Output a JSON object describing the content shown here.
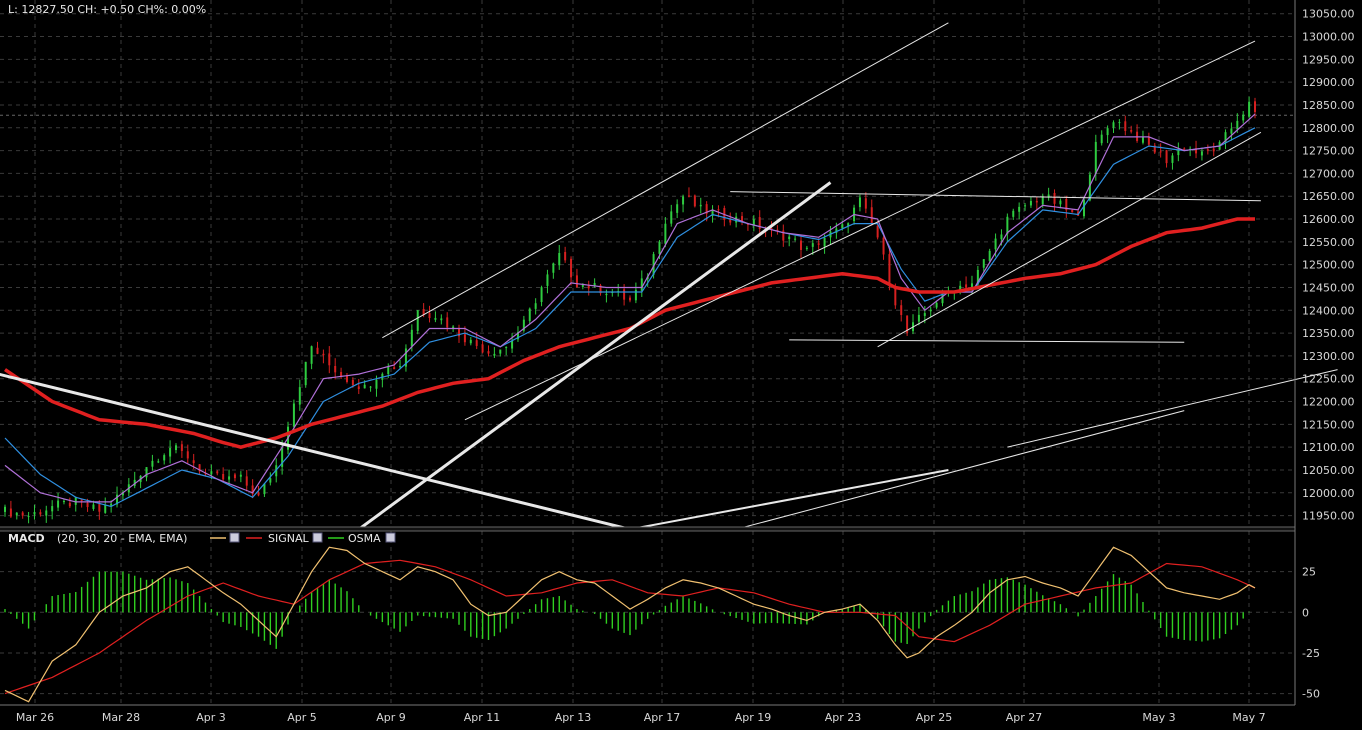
{
  "header": {
    "quote_line": "L: 12827.50 CH: +0.50   CH%: 0.00%"
  },
  "macd_legend": {
    "name": "MACD",
    "params": "(20, 30, 20 - EMA, EMA)",
    "signal": "SIGNAL",
    "osma": "OSMA"
  },
  "colors": {
    "background": "#000000",
    "grid": "#3a3a3a",
    "candle_up": "#2ecc40",
    "candle_down": "#d62020",
    "ma_long": "#e02020",
    "ma_mid": "#2f8fe0",
    "ma_short": "#b070d8",
    "trendline": "#e8e8e8",
    "macd_line": "#f0c070",
    "signal_line": "#e02020",
    "osma_bars": "#30d020"
  },
  "chart_data": [
    {
      "type": "candlestick",
      "name": "price",
      "y_tick_labels": [
        "13050.00",
        "13000.00",
        "12950.00",
        "12900.00",
        "12850.00",
        "12800.00",
        "12750.00",
        "12700.00",
        "12650.00",
        "12600.00",
        "12550.00",
        "12500.00",
        "12450.00",
        "12400.00",
        "12350.00",
        "12300.00",
        "12250.00",
        "12200.00",
        "12150.00",
        "12100.00",
        "12050.00",
        "12000.00",
        "11950.00"
      ],
      "ylim": [
        11925,
        13080
      ],
      "x_tick_labels": [
        "Mar 26",
        "Mar 28",
        "Apr 3",
        "Apr 5",
        "Apr 9",
        "Apr 11",
        "Apr 13",
        "Apr 17",
        "Apr 19",
        "Apr 23",
        "Apr 25",
        "Apr 27",
        "May 3",
        "May 7"
      ],
      "last_value": 12827.5,
      "close_path": [
        [
          0,
          11960
        ],
        [
          4,
          11950
        ],
        [
          8,
          11970
        ],
        [
          12,
          11980
        ],
        [
          16,
          11960
        ],
        [
          20,
          12000
        ],
        [
          24,
          12060
        ],
        [
          28,
          12100
        ],
        [
          31,
          12080
        ],
        [
          34,
          12040
        ],
        [
          37,
          12030
        ],
        [
          40,
          12030
        ],
        [
          43,
          11990
        ],
        [
          46,
          12060
        ],
        [
          49,
          12200
        ],
        [
          52,
          12320
        ],
        [
          55,
          12280
        ],
        [
          58,
          12250
        ],
        [
          61,
          12230
        ],
        [
          64,
          12270
        ],
        [
          67,
          12280
        ],
        [
          70,
          12400
        ],
        [
          73,
          12390
        ],
        [
          76,
          12360
        ],
        [
          79,
          12330
        ],
        [
          82,
          12310
        ],
        [
          85,
          12320
        ],
        [
          88,
          12370
        ],
        [
          91,
          12450
        ],
        [
          94,
          12520
        ],
        [
          97,
          12460
        ],
        [
          100,
          12450
        ],
        [
          103,
          12440
        ],
        [
          106,
          12420
        ],
        [
          109,
          12480
        ],
        [
          112,
          12600
        ],
        [
          115,
          12650
        ],
        [
          118,
          12620
        ],
        [
          121,
          12610
        ],
        [
          124,
          12600
        ],
        [
          127,
          12590
        ],
        [
          130,
          12570
        ],
        [
          133,
          12560
        ],
        [
          136,
          12530
        ],
        [
          139,
          12560
        ],
        [
          142,
          12580
        ],
        [
          145,
          12640
        ],
        [
          148,
          12560
        ],
        [
          151,
          12420
        ],
        [
          153,
          12350
        ],
        [
          155,
          12380
        ],
        [
          158,
          12420
        ],
        [
          161,
          12450
        ],
        [
          164,
          12460
        ],
        [
          167,
          12530
        ],
        [
          170,
          12600
        ],
        [
          173,
          12630
        ],
        [
          176,
          12650
        ],
        [
          179,
          12630
        ],
        [
          182,
          12600
        ],
        [
          185,
          12760
        ],
        [
          188,
          12820
        ],
        [
          191,
          12790
        ],
        [
          194,
          12760
        ],
        [
          197,
          12730
        ],
        [
          200,
          12760
        ],
        [
          203,
          12740
        ],
        [
          206,
          12760
        ],
        [
          209,
          12820
        ],
        [
          211,
          12850
        ],
        [
          212,
          12828
        ]
      ],
      "ma_long_path": [
        [
          0,
          12270
        ],
        [
          8,
          12200
        ],
        [
          16,
          12160
        ],
        [
          24,
          12150
        ],
        [
          32,
          12130
        ],
        [
          37,
          12110
        ],
        [
          40,
          12100
        ],
        [
          46,
          12120
        ],
        [
          52,
          12150
        ],
        [
          58,
          12170
        ],
        [
          64,
          12190
        ],
        [
          70,
          12220
        ],
        [
          76,
          12240
        ],
        [
          82,
          12250
        ],
        [
          88,
          12290
        ],
        [
          94,
          12320
        ],
        [
          100,
          12340
        ],
        [
          106,
          12360
        ],
        [
          112,
          12400
        ],
        [
          118,
          12420
        ],
        [
          124,
          12440
        ],
        [
          130,
          12460
        ],
        [
          136,
          12470
        ],
        [
          142,
          12480
        ],
        [
          148,
          12470
        ],
        [
          151,
          12450
        ],
        [
          155,
          12440
        ],
        [
          161,
          12440
        ],
        [
          167,
          12455
        ],
        [
          173,
          12470
        ],
        [
          179,
          12480
        ],
        [
          185,
          12500
        ],
        [
          191,
          12540
        ],
        [
          197,
          12570
        ],
        [
          203,
          12580
        ],
        [
          209,
          12600
        ]
      ],
      "ma_mid_path": [
        [
          0,
          12120
        ],
        [
          6,
          12040
        ],
        [
          12,
          11990
        ],
        [
          18,
          11970
        ],
        [
          24,
          12010
        ],
        [
          30,
          12050
        ],
        [
          36,
          12030
        ],
        [
          42,
          11990
        ],
        [
          48,
          12080
        ],
        [
          54,
          12200
        ],
        [
          60,
          12240
        ],
        [
          66,
          12260
        ],
        [
          72,
          12330
        ],
        [
          78,
          12350
        ],
        [
          84,
          12320
        ],
        [
          90,
          12360
        ],
        [
          96,
          12440
        ],
        [
          102,
          12440
        ],
        [
          108,
          12440
        ],
        [
          114,
          12560
        ],
        [
          120,
          12610
        ],
        [
          126,
          12590
        ],
        [
          132,
          12570
        ],
        [
          138,
          12555
        ],
        [
          144,
          12590
        ],
        [
          148,
          12590
        ],
        [
          152,
          12490
        ],
        [
          156,
          12420
        ],
        [
          160,
          12440
        ],
        [
          164,
          12440
        ],
        [
          170,
          12550
        ],
        [
          176,
          12620
        ],
        [
          182,
          12610
        ],
        [
          188,
          12720
        ],
        [
          194,
          12760
        ],
        [
          200,
          12750
        ],
        [
          206,
          12760
        ],
        [
          212,
          12800
        ]
      ],
      "ma_short_path": [
        [
          0,
          12060
        ],
        [
          6,
          12000
        ],
        [
          12,
          11980
        ],
        [
          18,
          11980
        ],
        [
          24,
          12040
        ],
        [
          30,
          12070
        ],
        [
          36,
          12030
        ],
        [
          42,
          12000
        ],
        [
          48,
          12120
        ],
        [
          54,
          12250
        ],
        [
          60,
          12260
        ],
        [
          66,
          12280
        ],
        [
          72,
          12360
        ],
        [
          78,
          12360
        ],
        [
          84,
          12320
        ],
        [
          90,
          12380
        ],
        [
          96,
          12460
        ],
        [
          102,
          12450
        ],
        [
          108,
          12450
        ],
        [
          114,
          12590
        ],
        [
          120,
          12620
        ],
        [
          126,
          12590
        ],
        [
          132,
          12570
        ],
        [
          138,
          12560
        ],
        [
          144,
          12610
        ],
        [
          148,
          12600
        ],
        [
          152,
          12470
        ],
        [
          156,
          12400
        ],
        [
          160,
          12440
        ],
        [
          164,
          12440
        ],
        [
          170,
          12570
        ],
        [
          176,
          12630
        ],
        [
          182,
          12620
        ],
        [
          188,
          12780
        ],
        [
          194,
          12780
        ],
        [
          200,
          12750
        ],
        [
          206,
          12760
        ],
        [
          212,
          12830
        ]
      ],
      "trendlines": [
        {
          "p1": [
            64,
            12340
          ],
          "p2": [
            160,
            13030
          ],
          "weight": 1
        },
        {
          "p1": [
            78,
            12160
          ],
          "p2": [
            212,
            12990
          ],
          "weight": 1
        },
        {
          "p1": [
            148,
            12320
          ],
          "p2": [
            213,
            12790
          ],
          "weight": 1
        },
        {
          "p1": [
            123,
            12660
          ],
          "p2": [
            213,
            12640
          ],
          "weight": 1
        },
        {
          "p1": [
            133,
            12335
          ],
          "p2": [
            200,
            12330
          ],
          "weight": 1
        },
        {
          "p1": [
            -20,
            12320
          ],
          "p2": [
            106,
            11920
          ],
          "weight": 3
        },
        {
          "p1": [
            60,
            11920
          ],
          "p2": [
            140,
            12680
          ],
          "weight": 3
        },
        {
          "p1": [
            106,
            11920
          ],
          "p2": [
            160,
            12050
          ],
          "weight": 2
        },
        {
          "p1": [
            124,
            11920
          ],
          "p2": [
            200,
            12180
          ],
          "weight": 1
        },
        {
          "p1": [
            170,
            12100
          ],
          "p2": [
            226,
            12270
          ],
          "weight": 1
        }
      ]
    },
    {
      "type": "macd",
      "name": "MACD",
      "y_tick_labels": [
        "25",
        "0",
        "-25",
        "-50"
      ],
      "ylim": [
        -57,
        50
      ],
      "macd_path": [
        [
          0,
          -48
        ],
        [
          4,
          -55
        ],
        [
          8,
          -30
        ],
        [
          12,
          -20
        ],
        [
          16,
          0
        ],
        [
          20,
          10
        ],
        [
          24,
          15
        ],
        [
          28,
          25
        ],
        [
          31,
          28
        ],
        [
          34,
          20
        ],
        [
          37,
          12
        ],
        [
          40,
          5
        ],
        [
          43,
          -5
        ],
        [
          46,
          -15
        ],
        [
          49,
          5
        ],
        [
          52,
          25
        ],
        [
          55,
          40
        ],
        [
          58,
          38
        ],
        [
          61,
          30
        ],
        [
          64,
          25
        ],
        [
          67,
          20
        ],
        [
          70,
          28
        ],
        [
          73,
          25
        ],
        [
          76,
          20
        ],
        [
          79,
          5
        ],
        [
          82,
          -2
        ],
        [
          85,
          0
        ],
        [
          88,
          10
        ],
        [
          91,
          20
        ],
        [
          94,
          25
        ],
        [
          97,
          20
        ],
        [
          100,
          18
        ],
        [
          103,
          10
        ],
        [
          106,
          2
        ],
        [
          109,
          8
        ],
        [
          112,
          15
        ],
        [
          115,
          20
        ],
        [
          118,
          18
        ],
        [
          121,
          15
        ],
        [
          124,
          10
        ],
        [
          127,
          5
        ],
        [
          130,
          2
        ],
        [
          133,
          -2
        ],
        [
          136,
          -5
        ],
        [
          139,
          0
        ],
        [
          142,
          2
        ],
        [
          145,
          5
        ],
        [
          148,
          -5
        ],
        [
          151,
          -20
        ],
        [
          153,
          -28
        ],
        [
          155,
          -25
        ],
        [
          158,
          -15
        ],
        [
          161,
          -8
        ],
        [
          164,
          0
        ],
        [
          167,
          12
        ],
        [
          170,
          20
        ],
        [
          173,
          22
        ],
        [
          176,
          18
        ],
        [
          179,
          15
        ],
        [
          182,
          10
        ],
        [
          185,
          25
        ],
        [
          188,
          40
        ],
        [
          191,
          35
        ],
        [
          194,
          25
        ],
        [
          197,
          15
        ],
        [
          200,
          12
        ],
        [
          203,
          10
        ],
        [
          206,
          8
        ],
        [
          209,
          12
        ],
        [
          211,
          17
        ],
        [
          212,
          15
        ]
      ],
      "signal_path": [
        [
          0,
          -50
        ],
        [
          8,
          -40
        ],
        [
          16,
          -25
        ],
        [
          24,
          -5
        ],
        [
          31,
          10
        ],
        [
          37,
          18
        ],
        [
          43,
          10
        ],
        [
          49,
          5
        ],
        [
          55,
          20
        ],
        [
          61,
          30
        ],
        [
          67,
          32
        ],
        [
          73,
          28
        ],
        [
          79,
          20
        ],
        [
          85,
          10
        ],
        [
          91,
          12
        ],
        [
          97,
          18
        ],
        [
          103,
          20
        ],
        [
          109,
          12
        ],
        [
          115,
          10
        ],
        [
          121,
          15
        ],
        [
          127,
          12
        ],
        [
          133,
          5
        ],
        [
          139,
          0
        ],
        [
          145,
          0
        ],
        [
          151,
          -2
        ],
        [
          155,
          -15
        ],
        [
          161,
          -18
        ],
        [
          167,
          -8
        ],
        [
          173,
          5
        ],
        [
          179,
          10
        ],
        [
          185,
          15
        ],
        [
          191,
          18
        ],
        [
          197,
          30
        ],
        [
          203,
          28
        ],
        [
          209,
          20
        ],
        [
          212,
          15
        ]
      ]
    }
  ]
}
